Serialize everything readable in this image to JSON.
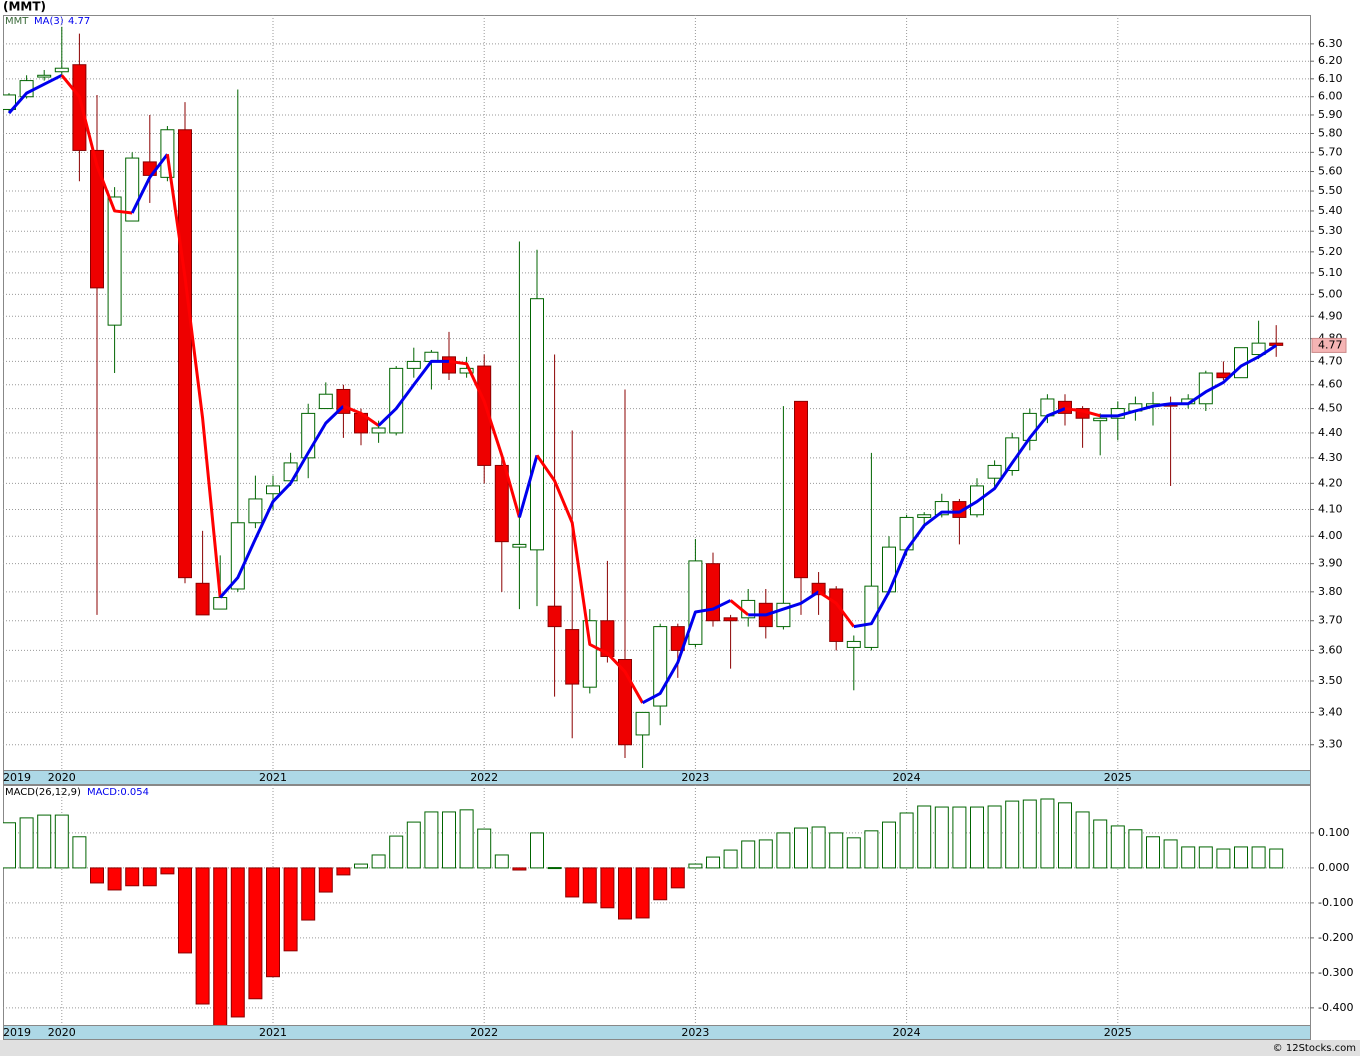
{
  "watermark": "© 12Stocks.com",
  "chart_data": [
    {
      "type": "candlestick",
      "title": "(MMT)",
      "symbol": "MMT",
      "categories": [
        "2019",
        null,
        null,
        "2020",
        null,
        null,
        null,
        null,
        null,
        null,
        null,
        null,
        null,
        null,
        null,
        "2021",
        null,
        null,
        null,
        null,
        null,
        null,
        null,
        null,
        null,
        null,
        null,
        "2022",
        null,
        null,
        null,
        null,
        null,
        null,
        null,
        null,
        null,
        null,
        null,
        "2023",
        null,
        null,
        null,
        null,
        null,
        null,
        null,
        null,
        null,
        null,
        null,
        "2024",
        null,
        null,
        null,
        null,
        null,
        null,
        null,
        null,
        null,
        null,
        null,
        "2025",
        null,
        null,
        null,
        null,
        null,
        null,
        null,
        null,
        null
      ],
      "open": [
        5.93,
        6.0,
        6.11,
        6.14,
        6.18,
        5.71,
        4.86,
        5.35,
        5.65,
        5.57,
        5.82,
        3.83,
        3.74,
        3.81,
        4.05,
        4.16,
        4.21,
        4.3,
        4.5,
        4.58,
        4.48,
        4.4,
        4.4,
        4.67,
        4.7,
        4.72,
        4.65,
        4.68,
        4.27,
        3.96,
        3.95,
        3.75,
        3.67,
        3.48,
        3.7,
        3.57,
        3.33,
        3.42,
        3.68,
        3.62,
        3.9,
        3.71,
        3.71,
        3.76,
        3.68,
        4.53,
        3.83,
        3.81,
        3.61,
        3.61,
        3.8,
        3.95,
        4.07,
        4.08,
        4.13,
        4.08,
        4.22,
        4.25,
        4.37,
        4.47,
        4.53,
        4.5,
        4.45,
        4.46,
        4.49,
        4.51,
        4.52,
        4.52,
        4.52,
        4.65,
        4.63,
        4.73,
        4.78
      ],
      "high": [
        6.02,
        6.12,
        6.15,
        6.4,
        6.36,
        6.01,
        5.52,
        5.7,
        5.9,
        5.84,
        5.97,
        4.02,
        3.93,
        6.04,
        4.23,
        4.23,
        4.32,
        4.52,
        4.61,
        4.6,
        4.5,
        4.45,
        4.68,
        4.76,
        4.75,
        4.83,
        4.72,
        4.73,
        4.3,
        5.25,
        5.21,
        4.73,
        4.41,
        3.74,
        3.91,
        4.58,
        3.4,
        3.69,
        3.69,
        3.99,
        3.94,
        3.72,
        3.81,
        3.81,
        4.51,
        4.53,
        3.87,
        3.82,
        3.65,
        4.32,
        4.0,
        4.08,
        4.09,
        4.16,
        4.14,
        4.22,
        4.29,
        4.4,
        4.5,
        4.56,
        4.56,
        4.51,
        4.48,
        4.53,
        4.55,
        4.57,
        4.55,
        4.56,
        4.66,
        4.7,
        4.76,
        4.88,
        4.86
      ],
      "low": [
        5.92,
        5.99,
        6.09,
        6.11,
        5.55,
        3.72,
        4.65,
        5.35,
        5.44,
        5.55,
        3.83,
        3.72,
        3.74,
        3.8,
        4.03,
        4.1,
        4.19,
        4.22,
        4.5,
        4.38,
        4.35,
        4.36,
        4.39,
        4.63,
        4.58,
        4.62,
        4.63,
        4.2,
        3.8,
        3.74,
        3.75,
        3.45,
        3.32,
        3.46,
        3.56,
        3.26,
        3.23,
        3.36,
        3.51,
        3.61,
        3.68,
        3.54,
        3.68,
        3.64,
        3.67,
        3.72,
        3.72,
        3.6,
        3.47,
        3.6,
        3.79,
        3.93,
        4.03,
        4.07,
        3.97,
        4.07,
        4.18,
        4.23,
        4.33,
        4.44,
        4.43,
        4.34,
        4.31,
        4.37,
        4.45,
        4.43,
        4.19,
        4.5,
        4.49,
        4.62,
        4.63,
        4.71,
        4.72
      ],
      "close": [
        6.01,
        6.09,
        6.12,
        6.16,
        5.71,
        5.03,
        5.47,
        5.67,
        5.58,
        5.82,
        3.85,
        3.72,
        3.78,
        4.05,
        4.14,
        4.19,
        4.28,
        4.48,
        4.56,
        4.48,
        4.4,
        4.42,
        4.67,
        4.7,
        4.74,
        4.65,
        4.67,
        4.27,
        3.98,
        3.97,
        4.98,
        3.68,
        3.49,
        3.7,
        3.58,
        3.3,
        3.4,
        3.68,
        3.6,
        3.91,
        3.7,
        3.7,
        3.77,
        3.68,
        3.76,
        3.85,
        3.79,
        3.63,
        3.63,
        3.82,
        3.96,
        4.07,
        4.08,
        4.13,
        4.07,
        4.19,
        4.27,
        4.38,
        4.48,
        4.54,
        4.48,
        4.46,
        4.46,
        4.5,
        4.52,
        4.52,
        4.51,
        4.54,
        4.65,
        4.63,
        4.76,
        4.78,
        4.77
      ],
      "series": [
        {
          "name": "MA(3)",
          "color": "#0000ee",
          "down_color": "#ff0000",
          "values": [
            5.91,
            6.02,
            6.07,
            6.12,
            6.0,
            5.63,
            5.4,
            5.39,
            5.57,
            5.69,
            5.08,
            4.46,
            3.78,
            3.85,
            3.99,
            4.13,
            4.2,
            4.32,
            4.44,
            4.51,
            4.48,
            4.43,
            4.5,
            4.6,
            4.7,
            4.7,
            4.69,
            4.53,
            4.31,
            4.07,
            4.31,
            4.21,
            4.05,
            3.62,
            3.59,
            3.53,
            3.43,
            3.46,
            3.56,
            3.73,
            3.74,
            3.77,
            3.72,
            3.72,
            3.74,
            3.76,
            3.8,
            3.76,
            3.68,
            3.69,
            3.8,
            3.95,
            4.04,
            4.09,
            4.09,
            4.13,
            4.18,
            4.28,
            4.38,
            4.47,
            4.5,
            4.49,
            4.47,
            4.47,
            4.49,
            4.51,
            4.52,
            4.52,
            4.57,
            4.61,
            4.68,
            4.72,
            4.77
          ]
        }
      ],
      "up_color": "#006400",
      "down_color": "#ee0000",
      "down_wick_color": "#8b0000",
      "badge_color": "#f4b4b4",
      "log_scale": true,
      "grid": true,
      "ylim": [
        3.224,
        6.47
      ],
      "yticks": [
        {
          "value": 3.3,
          "label": "3.30"
        },
        {
          "value": 3.4,
          "label": "3.40"
        },
        {
          "value": 3.5,
          "label": "3.50"
        },
        {
          "value": 3.6,
          "label": "3.60"
        },
        {
          "value": 3.7,
          "label": "3.70"
        },
        {
          "value": 3.8,
          "label": "3.80"
        },
        {
          "value": 3.9,
          "label": "3.90"
        },
        {
          "value": 4.0,
          "label": "4.00"
        },
        {
          "value": 4.1,
          "label": "4.10"
        },
        {
          "value": 4.2,
          "label": "4.20"
        },
        {
          "value": 4.3,
          "label": "4.30"
        },
        {
          "value": 4.4,
          "label": "4.40"
        },
        {
          "value": 4.5,
          "label": "4.50"
        },
        {
          "value": 4.6,
          "label": "4.60"
        },
        {
          "value": 4.7,
          "label": "4.70"
        },
        {
          "value": 4.8,
          "label": "4.80"
        },
        {
          "value": 4.9,
          "label": "4.90"
        },
        {
          "value": 5.0,
          "label": "5.00"
        },
        {
          "value": 5.1,
          "label": "5.10"
        },
        {
          "value": 5.2,
          "label": "5.20"
        },
        {
          "value": 5.3,
          "label": "5.30"
        },
        {
          "value": 5.4,
          "label": "5.40"
        },
        {
          "value": 5.5,
          "label": "5.50"
        },
        {
          "value": 5.6,
          "label": "5.60"
        },
        {
          "value": 5.7,
          "label": "5.70"
        },
        {
          "value": 5.8,
          "label": "5.80"
        },
        {
          "value": 5.9,
          "label": "5.90"
        },
        {
          "value": 6.0,
          "label": "6.00"
        },
        {
          "value": 6.1,
          "label": "6.10"
        },
        {
          "value": 6.2,
          "label": "6.20"
        },
        {
          "value": 6.3,
          "label": "6.30"
        }
      ]
    },
    {
      "type": "bar",
      "name": "MACD(26,12,9)",
      "value_label": "MACD:0.054",
      "categories": [
        "2019",
        null,
        null,
        "2020",
        null,
        null,
        null,
        null,
        null,
        null,
        null,
        null,
        null,
        null,
        null,
        "2021",
        null,
        null,
        null,
        null,
        null,
        null,
        null,
        null,
        null,
        null,
        null,
        "2022",
        null,
        null,
        null,
        null,
        null,
        null,
        null,
        null,
        null,
        null,
        null,
        "2023",
        null,
        null,
        null,
        null,
        null,
        null,
        null,
        null,
        null,
        null,
        null,
        "2024",
        null,
        null,
        null,
        null,
        null,
        null,
        null,
        null,
        null,
        null,
        null,
        "2025",
        null,
        null,
        null,
        null,
        null,
        null,
        null,
        null,
        null
      ],
      "values": [
        0.129,
        0.143,
        0.151,
        0.151,
        0.089,
        -0.043,
        -0.063,
        -0.051,
        -0.051,
        -0.017,
        -0.243,
        -0.389,
        -0.46,
        -0.426,
        -0.374,
        -0.311,
        -0.237,
        -0.149,
        -0.069,
        -0.02,
        0.011,
        0.037,
        0.091,
        0.131,
        0.16,
        0.16,
        0.166,
        0.111,
        0.037,
        -0.006,
        0.1,
        0.001,
        -0.083,
        -0.1,
        -0.114,
        -0.146,
        -0.143,
        -0.091,
        -0.057,
        0.011,
        0.031,
        0.051,
        0.077,
        0.08,
        0.1,
        0.114,
        0.117,
        0.1,
        0.086,
        0.106,
        0.131,
        0.157,
        0.177,
        0.174,
        0.174,
        0.174,
        0.177,
        0.191,
        0.194,
        0.197,
        0.186,
        0.16,
        0.137,
        0.12,
        0.109,
        0.089,
        0.08,
        0.06,
        0.06,
        0.054,
        0.06,
        0.06,
        0.054
      ],
      "up_color": "#006400",
      "down_color": "#ff0000",
      "legend_color": "#0000ee",
      "grid": true,
      "ylim": [
        -0.449,
        0.237
      ],
      "yticks": [
        {
          "value": -0.4,
          "label": "-0.400"
        },
        {
          "value": -0.3,
          "label": "-0.300"
        },
        {
          "value": -0.2,
          "label": "-0.200"
        },
        {
          "value": -0.1,
          "label": "-0.100"
        },
        {
          "value": 0,
          "label": "0.000"
        },
        {
          "value": 0.1,
          "label": "0.100"
        }
      ]
    }
  ]
}
